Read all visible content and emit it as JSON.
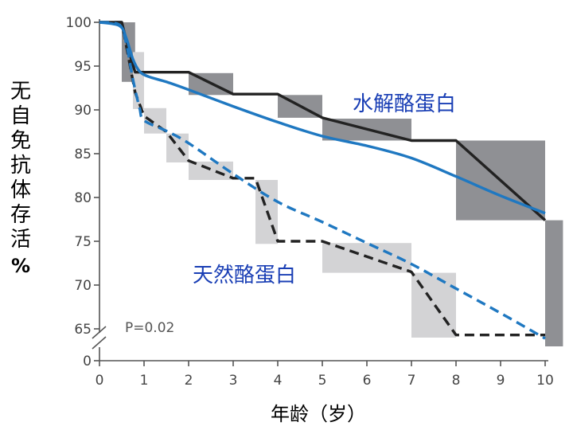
{
  "chart_data": {
    "type": "line",
    "ylabel_chars": [
      "无",
      "自",
      "免",
      "抗",
      "体",
      "存",
      "活"
    ],
    "ylabel_unit": "%",
    "xlabel": "年龄（岁）",
    "xlim": [
      0,
      10
    ],
    "ylim": [
      65,
      100
    ],
    "y_axis_break": true,
    "x_ticks": [
      0,
      1,
      2,
      3,
      4,
      5,
      6,
      7,
      8,
      9,
      10
    ],
    "x_tick_labels": [
      "0",
      "1",
      "2",
      "3",
      "4",
      "5",
      "6",
      "7",
      "8",
      "9",
      "10"
    ],
    "y_ticks": [
      100,
      95,
      90,
      85,
      80,
      75,
      70,
      65
    ],
    "y_tick_labels": [
      "100",
      "95",
      "90",
      "85",
      "80",
      "75",
      "70",
      "65"
    ],
    "y_zero_label": "0",
    "p_value": "P=0.02",
    "series": [
      {
        "name": "水解酪蛋白",
        "color": "#222222",
        "style": "solid-step",
        "x": [
          0,
          0.5,
          0.7,
          0.8,
          2.0,
          3.0,
          4.0,
          5.0,
          7.0,
          8.0,
          10.0
        ],
        "y": [
          100,
          100,
          96,
          94.3,
          94.3,
          91.8,
          91.8,
          89.1,
          86.5,
          86.5,
          77.4
        ]
      },
      {
        "name": "天然酪蛋白",
        "color": "#222222",
        "style": "dashed-step",
        "x": [
          0,
          0.5,
          0.65,
          0.8,
          1.0,
          1.5,
          2.0,
          3.0,
          3.5,
          4.0,
          5.0,
          7.0,
          8.0,
          10.0
        ],
        "y": [
          100,
          100,
          96,
          92,
          89.3,
          87.5,
          84.2,
          82.2,
          82.2,
          75,
          75,
          71.5,
          64.3,
          64.3
        ]
      },
      {
        "color": "#1f78c1",
        "style": "solid-smooth",
        "x": [
          0,
          0.45,
          0.6,
          0.75,
          0.9,
          1.1,
          1.5,
          2.0,
          3.0,
          4.0,
          5.0,
          6.0,
          7.0,
          8.0,
          9.0,
          10.0
        ],
        "y": [
          100,
          99.6,
          98.2,
          95.8,
          94.4,
          93.8,
          93.2,
          92.3,
          90.4,
          88.6,
          87.0,
          85.9,
          84.5,
          82.4,
          80.2,
          78.2
        ]
      },
      {
        "color": "#1f78c1",
        "style": "dashed-smooth",
        "x": [
          0,
          0.45,
          0.6,
          0.75,
          0.9,
          1.0,
          1.5,
          2.0,
          3.0,
          4.0,
          5.0,
          6.0,
          7.0,
          8.0,
          9.0,
          10.0
        ],
        "y": [
          100,
          99.7,
          97.6,
          93.5,
          90.2,
          88.8,
          87.6,
          86.2,
          82.7,
          79.5,
          77.2,
          74.8,
          72.4,
          69.6,
          66.8,
          63.9
        ]
      }
    ],
    "ci_boxes": [
      {
        "series": "水解酪蛋白",
        "shade": "#8f9094",
        "x0": 0.5,
        "x1": 0.8,
        "y0": 93.2,
        "y1": 100
      },
      {
        "series": "水解酪蛋白",
        "shade": "#8f9094",
        "x0": 2.0,
        "x1": 3.0,
        "y0": 91.7,
        "y1": 94.2
      },
      {
        "series": "水解酪蛋白",
        "shade": "#8f9094",
        "x0": 4.0,
        "x1": 5.0,
        "y0": 89.1,
        "y1": 91.7
      },
      {
        "series": "水解酪蛋白",
        "shade": "#8f9094",
        "x0": 5.0,
        "x1": 7.0,
        "y0": 86.5,
        "y1": 89.0
      },
      {
        "series": "水解酪蛋白",
        "shade": "#8f9094",
        "x0": 8.0,
        "x1": 10.0,
        "y0": 77.4,
        "y1": 86.5
      },
      {
        "series": "水解酪蛋白",
        "shade": "#8f9094",
        "x0": 10.0,
        "x1": 10.4,
        "y0": 63.0,
        "y1": 77.4
      },
      {
        "series": "天然酪蛋白",
        "shade": "#d3d3d5",
        "x0": 0.75,
        "x1": 1.0,
        "y0": 90.1,
        "y1": 96.6
      },
      {
        "series": "天然酪蛋白",
        "shade": "#d3d3d5",
        "x0": 1.0,
        "x1": 1.5,
        "y0": 87.3,
        "y1": 90.2
      },
      {
        "series": "天然酪蛋白",
        "shade": "#d3d3d5",
        "x0": 1.5,
        "x1": 2.0,
        "y0": 84.0,
        "y1": 87.3
      },
      {
        "series": "天然酪蛋白",
        "shade": "#d3d3d5",
        "x0": 2.0,
        "x1": 3.0,
        "y0": 82.0,
        "y1": 84.1
      },
      {
        "series": "天然酪蛋白",
        "shade": "#d3d3d5",
        "x0": 3.5,
        "x1": 4.0,
        "y0": 74.7,
        "y1": 82.0
      },
      {
        "series": "天然酪蛋白",
        "shade": "#d3d3d5",
        "x0": 5.0,
        "x1": 7.0,
        "y0": 71.4,
        "y1": 74.8
      },
      {
        "series": "天然酪蛋白",
        "shade": "#d3d3d5",
        "x0": 7.0,
        "x1": 8.0,
        "y0": 64.0,
        "y1": 71.4
      }
    ]
  }
}
